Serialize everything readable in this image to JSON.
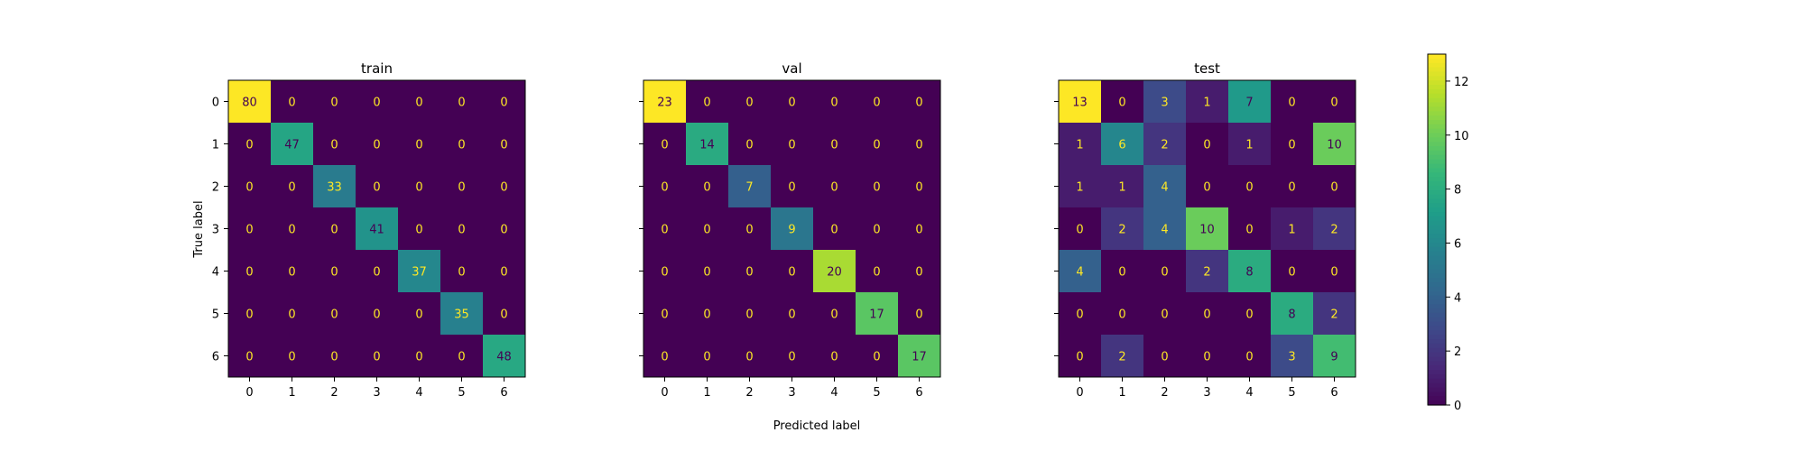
{
  "chart_data": {
    "type": "heatmap",
    "xlabel": "Predicted label",
    "ylabel": "True label",
    "tick_labels": [
      "0",
      "1",
      "2",
      "3",
      "4",
      "5",
      "6"
    ],
    "colormap": "viridis",
    "colorbar": {
      "range": [
        0,
        13
      ],
      "ticks": [
        0,
        2,
        4,
        6,
        8,
        10,
        12
      ]
    },
    "panels": [
      {
        "title": "train",
        "matrix": [
          [
            80,
            0,
            0,
            0,
            0,
            0,
            0
          ],
          [
            0,
            47,
            0,
            0,
            0,
            0,
            0
          ],
          [
            0,
            0,
            33,
            0,
            0,
            0,
            0
          ],
          [
            0,
            0,
            0,
            41,
            0,
            0,
            0
          ],
          [
            0,
            0,
            0,
            0,
            37,
            0,
            0
          ],
          [
            0,
            0,
            0,
            0,
            0,
            35,
            0
          ],
          [
            0,
            0,
            0,
            0,
            0,
            0,
            48
          ]
        ]
      },
      {
        "title": "val",
        "matrix": [
          [
            23,
            0,
            0,
            0,
            0,
            0,
            0
          ],
          [
            0,
            14,
            0,
            0,
            0,
            0,
            0
          ],
          [
            0,
            0,
            7,
            0,
            0,
            0,
            0
          ],
          [
            0,
            0,
            0,
            9,
            0,
            0,
            0
          ],
          [
            0,
            0,
            0,
            0,
            20,
            0,
            0
          ],
          [
            0,
            0,
            0,
            0,
            0,
            17,
            0
          ],
          [
            0,
            0,
            0,
            0,
            0,
            0,
            17
          ]
        ]
      },
      {
        "title": "test",
        "matrix": [
          [
            13,
            0,
            3,
            1,
            7,
            0,
            0
          ],
          [
            1,
            6,
            2,
            0,
            1,
            0,
            10
          ],
          [
            1,
            1,
            4,
            0,
            0,
            0,
            0
          ],
          [
            0,
            2,
            4,
            10,
            0,
            1,
            2
          ],
          [
            4,
            0,
            0,
            2,
            8,
            0,
            0
          ],
          [
            0,
            0,
            0,
            0,
            0,
            8,
            2
          ],
          [
            0,
            2,
            0,
            0,
            0,
            3,
            9
          ]
        ]
      }
    ]
  }
}
